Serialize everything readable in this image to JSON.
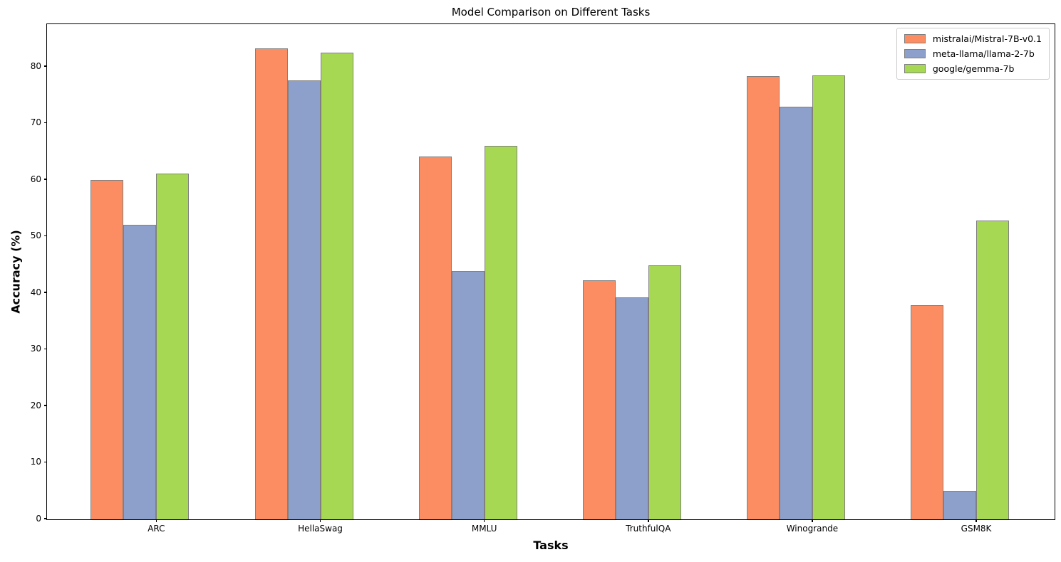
{
  "chart_data": {
    "type": "bar",
    "title": "Model Comparison on Different Tasks",
    "xlabel": "Tasks",
    "ylabel": "Accuracy (%)",
    "categories": [
      "ARC",
      "HellaSwag",
      "MMLU",
      "TruthfulQA",
      "Winogrande",
      "GSM8K"
    ],
    "series": [
      {
        "name": "mistralai/Mistral-7B-v0.1",
        "color": "#fc8d62",
        "values": [
          60.0,
          83.3,
          64.2,
          42.2,
          78.4,
          37.8
        ]
      },
      {
        "name": "meta-llama/llama-2-7b",
        "color": "#8da0cb",
        "values": [
          52.1,
          77.6,
          43.9,
          39.3,
          73.0,
          5.0
        ]
      },
      {
        "name": "google/gemma-7b",
        "color": "#a6d854",
        "values": [
          61.1,
          82.5,
          66.0,
          44.9,
          78.5,
          52.8
        ]
      }
    ],
    "yticks": [
      0,
      10,
      20,
      30,
      40,
      50,
      60,
      70,
      80
    ],
    "ylim": [
      0,
      87.4
    ],
    "bar_edge_color": "#808080",
    "axis_color": "#000000",
    "legend_position": "upper right",
    "grid": false
  }
}
